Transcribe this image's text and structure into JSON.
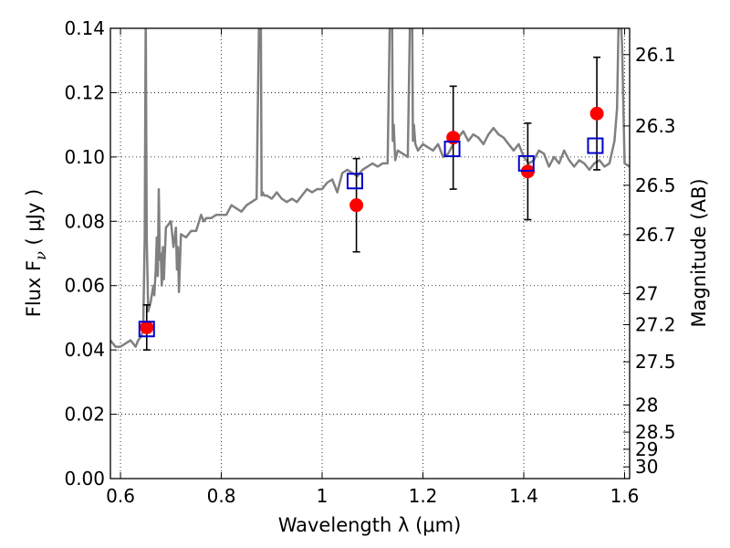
{
  "chart_data": {
    "type": "scatter",
    "xlabel": "Wavelength  λ (μm)",
    "ylabel": "Flux  F",
    "ylabel_sub": "ν",
    "ylabel_unit": " ( μJy )",
    "y2label": "Magnitude (AB)",
    "xlim": [
      0.58,
      1.61
    ],
    "ylim": [
      0.0,
      0.14
    ],
    "grid": true,
    "x_ticks": [
      0.6,
      0.8,
      1.0,
      1.2,
      1.4,
      1.6
    ],
    "x_tick_labels": [
      "0.6",
      "0.8",
      "1",
      "1.2",
      "1.4",
      "1.6"
    ],
    "y_ticks": [
      0.0,
      0.02,
      0.04,
      0.06,
      0.08,
      0.1,
      0.12,
      0.14
    ],
    "y_tick_labels": [
      "0.00",
      "0.02",
      "0.04",
      "0.06",
      "0.08",
      "0.10",
      "0.12",
      "0.14"
    ],
    "y2_ticks": [
      26.1,
      26.3,
      26.5,
      26.7,
      27,
      27.2,
      27.5,
      28,
      28.5,
      29,
      30
    ],
    "y2_tick_labels": [
      "26.1",
      "26.3",
      "26.5",
      "26.7",
      "27",
      "27.2",
      "27.5",
      "28",
      "28.5",
      "29",
      "30"
    ],
    "colors": {
      "model": "#808080",
      "observed": "#ff0000",
      "model_photometry": "#0000cc",
      "errorbar": "#000000"
    },
    "series": [
      {
        "kind": "line",
        "x": [
          0.58,
          0.585,
          0.59,
          0.6,
          0.61,
          0.62,
          0.625,
          0.63,
          0.635,
          0.64,
          0.645,
          0.648,
          0.65,
          0.652,
          0.655,
          0.66,
          0.665,
          0.667,
          0.67,
          0.672,
          0.674,
          0.676,
          0.678,
          0.68,
          0.682,
          0.684,
          0.686,
          0.69,
          0.7,
          0.705,
          0.71,
          0.712,
          0.714,
          0.716,
          0.72,
          0.73,
          0.74,
          0.75,
          0.76,
          0.765,
          0.77,
          0.78,
          0.79,
          0.8,
          0.81,
          0.82,
          0.83,
          0.84,
          0.85,
          0.86,
          0.87,
          0.875,
          0.878,
          0.88,
          0.882,
          0.885,
          0.89,
          0.9,
          0.91,
          0.92,
          0.93,
          0.94,
          0.95,
          0.96,
          0.97,
          0.98,
          0.99,
          1.0,
          1.01,
          1.02,
          1.03,
          1.04,
          1.05,
          1.06,
          1.07,
          1.08,
          1.09,
          1.1,
          1.11,
          1.12,
          1.13,
          1.135,
          1.138,
          1.14,
          1.142,
          1.145,
          1.15,
          1.16,
          1.17,
          1.175,
          1.178,
          1.18,
          1.182,
          1.185,
          1.19,
          1.2,
          1.21,
          1.22,
          1.23,
          1.24,
          1.25,
          1.26,
          1.27,
          1.28,
          1.29,
          1.3,
          1.31,
          1.32,
          1.33,
          1.34,
          1.35,
          1.36,
          1.37,
          1.38,
          1.39,
          1.4,
          1.41,
          1.42,
          1.43,
          1.44,
          1.45,
          1.46,
          1.47,
          1.48,
          1.49,
          1.5,
          1.51,
          1.52,
          1.53,
          1.54,
          1.55,
          1.56,
          1.57,
          1.58,
          1.585,
          1.588,
          1.59,
          1.595,
          1.6,
          1.61
        ],
        "y": [
          0.043,
          0.042,
          0.041,
          0.041,
          0.042,
          0.043,
          0.042,
          0.041,
          0.043,
          0.044,
          0.046,
          0.075,
          0.145,
          0.075,
          0.052,
          0.055,
          0.06,
          0.057,
          0.065,
          0.075,
          0.063,
          0.09,
          0.068,
          0.07,
          0.06,
          0.072,
          0.062,
          0.078,
          0.08,
          0.072,
          0.078,
          0.065,
          0.072,
          0.058,
          0.076,
          0.075,
          0.077,
          0.077,
          0.082,
          0.08,
          0.081,
          0.081,
          0.082,
          0.082,
          0.082,
          0.085,
          0.084,
          0.083,
          0.085,
          0.086,
          0.087,
          0.145,
          0.16,
          0.088,
          0.089,
          0.088,
          0.088,
          0.087,
          0.089,
          0.087,
          0.086,
          0.087,
          0.086,
          0.088,
          0.09,
          0.089,
          0.09,
          0.09,
          0.092,
          0.093,
          0.089,
          0.095,
          0.096,
          0.095,
          0.094,
          0.096,
          0.097,
          0.098,
          0.097,
          0.098,
          0.098,
          0.15,
          0.165,
          0.105,
          0.11,
          0.099,
          0.102,
          0.101,
          0.1,
          0.15,
          0.16,
          0.105,
          0.11,
          0.104,
          0.102,
          0.104,
          0.103,
          0.102,
          0.104,
          0.1,
          0.101,
          0.104,
          0.106,
          0.108,
          0.105,
          0.107,
          0.106,
          0.104,
          0.107,
          0.109,
          0.107,
          0.106,
          0.104,
          0.102,
          0.104,
          0.1,
          0.098,
          0.099,
          0.102,
          0.101,
          0.097,
          0.1,
          0.098,
          0.102,
          0.099,
          0.097,
          0.099,
          0.098,
          0.096,
          0.098,
          0.099,
          0.097,
          0.098,
          0.105,
          0.115,
          0.14,
          0.15,
          0.135,
          0.098,
          0.097
        ]
      },
      {
        "kind": "observed",
        "x": [
          0.652,
          1.068,
          1.26,
          1.408,
          1.545
        ],
        "y": [
          0.047,
          0.085,
          0.106,
          0.0955,
          0.1135
        ],
        "err": [
          0.007,
          0.0145,
          0.016,
          0.015,
          0.0175
        ]
      },
      {
        "kind": "model_photometry",
        "x": [
          0.652,
          1.065,
          1.258,
          1.405,
          1.542
        ],
        "y": [
          0.0465,
          0.0925,
          0.1025,
          0.098,
          0.1035
        ]
      }
    ]
  }
}
